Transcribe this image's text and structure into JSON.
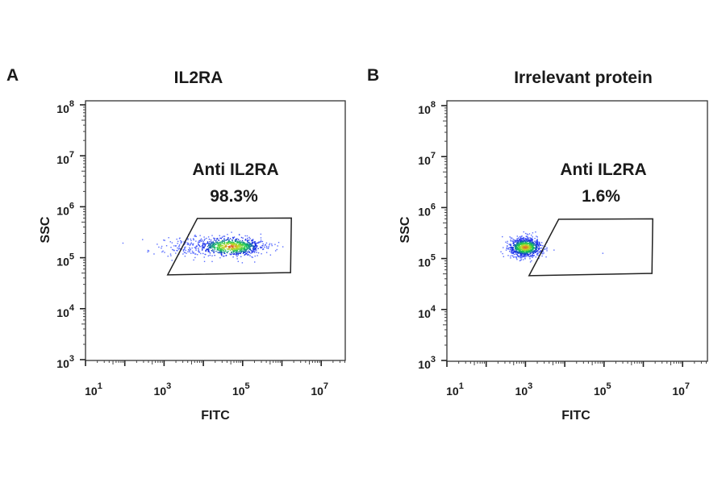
{
  "chart_data": [
    {
      "type": "scatter",
      "panel_label": "A",
      "title": "IL2RA",
      "xlabel": "FITC",
      "ylabel": "SSC",
      "xscale": "log",
      "yscale": "log",
      "xlim": [
        10,
        40000000
      ],
      "ylim": [
        1000,
        120000000
      ],
      "x_tick_exponents": [
        1,
        3,
        5,
        7
      ],
      "y_tick_exponents": [
        3,
        4,
        5,
        6,
        7,
        8
      ],
      "grid": false,
      "colormap": "density (blue-green-yellow-red)",
      "gate": {
        "name": "Anti IL2RA",
        "percent": "98.3%",
        "vertices": [
          [
            7000,
            590000
          ],
          [
            1740000,
            600000
          ],
          [
            1660000,
            51000
          ],
          [
            1230000,
            51000
          ],
          [
            1230,
            46000
          ]
        ]
      },
      "populations": [
        {
          "center": [
            48000,
            170000
          ],
          "x_range": [
            1200,
            230000
          ],
          "y_range": [
            90000,
            300000
          ]
        }
      ]
    },
    {
      "type": "scatter",
      "panel_label": "B",
      "title": "Irrelevant protein",
      "xlabel": "FITC",
      "ylabel": "SSC",
      "xscale": "log",
      "yscale": "log",
      "xlim": [
        10,
        40000000
      ],
      "ylim": [
        1000,
        120000000
      ],
      "x_tick_exponents": [
        1,
        3,
        5,
        7
      ],
      "y_tick_exponents": [
        3,
        4,
        5,
        6,
        7,
        8
      ],
      "grid": false,
      "colormap": "density (blue-green-yellow-red)",
      "gate": {
        "name": "Anti IL2RA",
        "percent": "1.6%",
        "vertices": [
          [
            7000,
            590000
          ],
          [
            1740000,
            600000
          ],
          [
            1660000,
            51000
          ],
          [
            1230000,
            51000
          ],
          [
            1230,
            46000
          ]
        ]
      },
      "populations": [
        {
          "center": [
            950,
            170000
          ],
          "x_range": [
            360,
            5000
          ],
          "y_range": [
            95000,
            300000
          ]
        }
      ]
    }
  ]
}
